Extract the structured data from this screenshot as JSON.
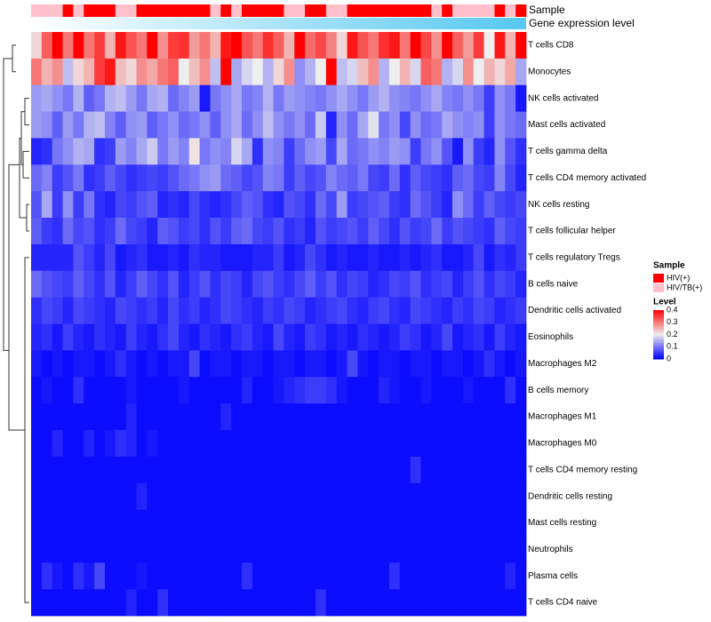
{
  "chart_data": {
    "type": "heatmap",
    "title": "",
    "annotation_tracks": [
      {
        "name": "Sample",
        "label": "Sample"
      },
      {
        "name": "Gene expression level",
        "label": "Gene expression level"
      }
    ],
    "sample_groups": [
      "HIV/TB(+)",
      "HIV/TB(+)",
      "HIV/TB(+)",
      "HIV(+)",
      "HIV/TB(+)",
      "HIV(+)",
      "HIV(+)",
      "HIV(+)",
      "HIV/TB(+)",
      "HIV/TB(+)",
      "HIV(+)",
      "HIV(+)",
      "HIV(+)",
      "HIV(+)",
      "HIV(+)",
      "HIV(+)",
      "HIV(+)",
      "HIV/TB(+)",
      "HIV(+)",
      "HIV/TB(+)",
      "HIV(+)",
      "HIV(+)",
      "HIV(+)",
      "HIV(+)",
      "HIV/TB(+)",
      "HIV/TB(+)",
      "HIV(+)",
      "HIV(+)",
      "HIV/TB(+)",
      "HIV/TB(+)",
      "HIV(+)",
      "HIV(+)",
      "HIV(+)",
      "HIV(+)",
      "HIV(+)",
      "HIV(+)",
      "HIV(+)",
      "HIV(+)",
      "HIV/TB(+)",
      "HIV(+)",
      "HIV/TB(+)",
      "HIV/TB(+)",
      "HIV/TB(+)",
      "HIV/TB(+)",
      "HIV(+)",
      "HIV/TB(+)",
      "HIV(+)"
    ],
    "rows": [
      "T cells CD8",
      "Monocytes",
      "NK cells activated",
      "Mast cells activated",
      "T cells gamma delta",
      "T cells CD4 memory activated",
      "NK cells resting",
      "T cells follicular helper",
      "T cells regulatory  Tregs",
      "B cells naive",
      "Dendritic cells activated",
      "Eosinophils",
      "Macrophages M2",
      "B cells memory",
      "Macrophages M1",
      "Macrophages M0",
      "T cells CD4 memory resting",
      "Dendritic cells resting",
      "Mast cells resting",
      "Neutrophils",
      "Plasma cells",
      "T cells CD4 naive"
    ],
    "values": [
      [
        0.22,
        0.32,
        0.4,
        0.3,
        0.4,
        0.3,
        0.35,
        0.25,
        0.38,
        0.33,
        0.3,
        0.4,
        0.28,
        0.35,
        0.36,
        0.27,
        0.3,
        0.25,
        0.38,
        0.4,
        0.33,
        0.3,
        0.36,
        0.32,
        0.25,
        0.4,
        0.31,
        0.34,
        0.29,
        0.22,
        0.38,
        0.33,
        0.3,
        0.36,
        0.38,
        0.3,
        0.4,
        0.34,
        0.28,
        0.4,
        0.32,
        0.27,
        0.35,
        0.2,
        0.38,
        0.25,
        0.4
      ],
      [
        0.3,
        0.25,
        0.28,
        0.16,
        0.22,
        0.25,
        0.35,
        0.38,
        0.24,
        0.22,
        0.28,
        0.26,
        0.3,
        0.32,
        0.2,
        0.24,
        0.28,
        0.16,
        0.4,
        0.14,
        0.18,
        0.2,
        0.15,
        0.22,
        0.28,
        0.12,
        0.15,
        0.2,
        0.4,
        0.16,
        0.18,
        0.24,
        0.28,
        0.15,
        0.2,
        0.25,
        0.18,
        0.32,
        0.3,
        0.15,
        0.18,
        0.28,
        0.2,
        0.25,
        0.22,
        0.26,
        0.14
      ],
      [
        0.13,
        0.14,
        0.12,
        0.1,
        0.15,
        0.08,
        0.1,
        0.15,
        0.16,
        0.13,
        0.1,
        0.14,
        0.15,
        0.09,
        0.11,
        0.13,
        0.02,
        0.1,
        0.12,
        0.14,
        0.1,
        0.11,
        0.15,
        0.1,
        0.13,
        0.12,
        0.11,
        0.1,
        0.12,
        0.14,
        0.12,
        0.1,
        0.13,
        0.15,
        0.12,
        0.11,
        0.1,
        0.12,
        0.14,
        0.11,
        0.1,
        0.12,
        0.1,
        0.05,
        0.12,
        0.1,
        0.02
      ],
      [
        0.13,
        0.12,
        0.08,
        0.13,
        0.1,
        0.15,
        0.16,
        0.11,
        0.08,
        0.12,
        0.13,
        0.08,
        0.1,
        0.12,
        0.09,
        0.1,
        0.12,
        0.08,
        0.12,
        0.14,
        0.09,
        0.12,
        0.16,
        0.12,
        0.1,
        0.12,
        0.09,
        0.17,
        0.03,
        0.12,
        0.09,
        0.14,
        0.19,
        0.1,
        0.12,
        0.06,
        0.12,
        0.09,
        0.1,
        0.14,
        0.12,
        0.11,
        0.12,
        0.05,
        0.12,
        0.1,
        0.09
      ],
      [
        0.03,
        0.04,
        0.1,
        0.12,
        0.15,
        0.14,
        0.04,
        0.05,
        0.13,
        0.11,
        0.14,
        0.17,
        0.1,
        0.13,
        0.11,
        0.21,
        0.1,
        0.12,
        0.11,
        0.18,
        0.14,
        0.04,
        0.12,
        0.11,
        0.05,
        0.09,
        0.12,
        0.13,
        0.06,
        0.14,
        0.09,
        0.1,
        0.12,
        0.11,
        0.13,
        0.12,
        0.05,
        0.1,
        0.12,
        0.07,
        0.02,
        0.12,
        0.05,
        0.03,
        0.12,
        0.07,
        0.04
      ],
      [
        0.09,
        0.11,
        0.05,
        0.07,
        0.1,
        0.04,
        0.05,
        0.08,
        0.06,
        0.04,
        0.05,
        0.06,
        0.05,
        0.07,
        0.09,
        0.1,
        0.12,
        0.13,
        0.09,
        0.08,
        0.06,
        0.07,
        0.11,
        0.1,
        0.05,
        0.08,
        0.06,
        0.07,
        0.11,
        0.09,
        0.08,
        0.1,
        0.06,
        0.05,
        0.09,
        0.04,
        0.08,
        0.06,
        0.05,
        0.04,
        0.08,
        0.09,
        0.06,
        0.05,
        0.11,
        0.06,
        0.03
      ],
      [
        0.07,
        0.14,
        0.05,
        0.12,
        0.05,
        0.1,
        0.04,
        0.03,
        0.06,
        0.05,
        0.07,
        0.08,
        0.03,
        0.04,
        0.03,
        0.06,
        0.04,
        0.03,
        0.04,
        0.06,
        0.08,
        0.07,
        0.04,
        0.03,
        0.07,
        0.06,
        0.04,
        0.09,
        0.06,
        0.13,
        0.05,
        0.06,
        0.07,
        0.08,
        0.05,
        0.04,
        0.09,
        0.07,
        0.05,
        0.03,
        0.12,
        0.09,
        0.05,
        0.08,
        0.06,
        0.05,
        0.06
      ],
      [
        0.08,
        0.05,
        0.04,
        0.09,
        0.06,
        0.07,
        0.04,
        0.05,
        0.09,
        0.06,
        0.05,
        0.03,
        0.08,
        0.07,
        0.05,
        0.06,
        0.04,
        0.07,
        0.05,
        0.08,
        0.09,
        0.06,
        0.05,
        0.07,
        0.04,
        0.05,
        0.03,
        0.07,
        0.05,
        0.06,
        0.07,
        0.05,
        0.08,
        0.06,
        0.04,
        0.07,
        0.05,
        0.06,
        0.09,
        0.05,
        0.07,
        0.06,
        0.05,
        0.04,
        0.08,
        0.06,
        0.05
      ],
      [
        0.03,
        0.03,
        0.03,
        0.03,
        0.07,
        0.05,
        0.03,
        0.06,
        0.02,
        0.03,
        0.04,
        0.02,
        0.02,
        0.03,
        0.02,
        0.04,
        0.03,
        0.03,
        0.02,
        0.02,
        0.02,
        0.03,
        0.03,
        0.05,
        0.02,
        0.03,
        0.06,
        0.04,
        0.02,
        0.03,
        0.02,
        0.02,
        0.03,
        0.02,
        0.02,
        0.03,
        0.02,
        0.03,
        0.04,
        0.02,
        0.02,
        0.03,
        0.06,
        0.02,
        0.04,
        0.03,
        0.05
      ],
      [
        0.09,
        0.07,
        0.06,
        0.05,
        0.08,
        0.06,
        0.04,
        0.07,
        0.03,
        0.05,
        0.08,
        0.06,
        0.04,
        0.07,
        0.03,
        0.05,
        0.07,
        0.04,
        0.06,
        0.05,
        0.03,
        0.06,
        0.07,
        0.05,
        0.04,
        0.06,
        0.08,
        0.05,
        0.07,
        0.04,
        0.06,
        0.05,
        0.03,
        0.04,
        0.06,
        0.05,
        0.07,
        0.04,
        0.05,
        0.06,
        0.03,
        0.05,
        0.07,
        0.04,
        0.06,
        0.05,
        0.03
      ],
      [
        0.04,
        0.06,
        0.05,
        0.03,
        0.06,
        0.05,
        0.04,
        0.03,
        0.06,
        0.05,
        0.04,
        0.05,
        0.03,
        0.06,
        0.04,
        0.05,
        0.03,
        0.04,
        0.06,
        0.05,
        0.04,
        0.03,
        0.05,
        0.04,
        0.06,
        0.05,
        0.03,
        0.04,
        0.05,
        0.06,
        0.04,
        0.03,
        0.05,
        0.06,
        0.04,
        0.03,
        0.06,
        0.05,
        0.04,
        0.03,
        0.05,
        0.04,
        0.06,
        0.05,
        0.03,
        0.04,
        0.05
      ],
      [
        0.03,
        0.04,
        0.02,
        0.05,
        0.03,
        0.02,
        0.04,
        0.03,
        0.02,
        0.05,
        0.03,
        0.02,
        0.04,
        0.06,
        0.03,
        0.02,
        0.04,
        0.03,
        0.02,
        0.04,
        0.05,
        0.03,
        0.02,
        0.06,
        0.03,
        0.02,
        0.05,
        0.04,
        0.02,
        0.03,
        0.02,
        0.04,
        0.03,
        0.02,
        0.03,
        0.05,
        0.04,
        0.02,
        0.03,
        0.06,
        0.02,
        0.03,
        0.04,
        0.02,
        0.05,
        0.03,
        0.02
      ],
      [
        0.02,
        0.01,
        0.02,
        0.01,
        0.02,
        0.02,
        0.01,
        0.02,
        0.04,
        0.02,
        0.01,
        0.02,
        0.01,
        0.02,
        0.02,
        0.06,
        0.01,
        0.02,
        0.02,
        0.01,
        0.02,
        0.02,
        0.01,
        0.02,
        0.02,
        0.01,
        0.02,
        0.02,
        0.01,
        0.02,
        0.06,
        0.02,
        0.01,
        0.02,
        0.02,
        0.01,
        0.02,
        0.02,
        0.01,
        0.02,
        0.02,
        0.01,
        0.02,
        0.04,
        0.02,
        0.01,
        0.02
      ],
      [
        0.01,
        0.02,
        0.01,
        0.01,
        0.04,
        0.01,
        0.01,
        0.01,
        0.01,
        0.02,
        0.01,
        0.01,
        0.01,
        0.01,
        0.02,
        0.01,
        0.01,
        0.01,
        0.01,
        0.01,
        0.03,
        0.01,
        0.01,
        0.02,
        0.03,
        0.04,
        0.05,
        0.05,
        0.04,
        0.02,
        0.01,
        0.01,
        0.01,
        0.03,
        0.02,
        0.01,
        0.01,
        0.02,
        0.01,
        0.01,
        0.01,
        0.02,
        0.01,
        0.01,
        0.01,
        0.04,
        0.01
      ],
      [
        0.01,
        0.01,
        0.01,
        0.01,
        0.01,
        0.01,
        0.01,
        0.01,
        0.01,
        0.03,
        0.01,
        0.01,
        0.01,
        0.01,
        0.01,
        0.01,
        0.01,
        0.01,
        0.03,
        0.01,
        0.01,
        0.01,
        0.01,
        0.01,
        0.01,
        0.01,
        0.01,
        0.01,
        0.01,
        0.01,
        0.01,
        0.01,
        0.01,
        0.01,
        0.01,
        0.01,
        0.01,
        0.01,
        0.01,
        0.01,
        0.01,
        0.01,
        0.01,
        0.01,
        0.01,
        0.01,
        0.01
      ],
      [
        0.01,
        0.01,
        0.03,
        0.01,
        0.01,
        0.03,
        0.01,
        0.02,
        0.04,
        0.03,
        0.01,
        0.02,
        0.01,
        0.01,
        0.01,
        0.01,
        0.01,
        0.01,
        0.01,
        0.01,
        0.01,
        0.01,
        0.01,
        0.01,
        0.01,
        0.01,
        0.01,
        0.01,
        0.01,
        0.01,
        0.01,
        0.01,
        0.01,
        0.01,
        0.01,
        0.01,
        0.01,
        0.01,
        0.01,
        0.01,
        0.01,
        0.01,
        0.01,
        0.01,
        0.01,
        0.01,
        0.01
      ],
      [
        0.01,
        0.01,
        0.01,
        0.01,
        0.01,
        0.01,
        0.01,
        0.01,
        0.01,
        0.01,
        0.01,
        0.01,
        0.01,
        0.01,
        0.01,
        0.01,
        0.01,
        0.01,
        0.01,
        0.01,
        0.01,
        0.01,
        0.01,
        0.01,
        0.01,
        0.01,
        0.01,
        0.01,
        0.01,
        0.01,
        0.01,
        0.01,
        0.01,
        0.01,
        0.01,
        0.01,
        0.04,
        0.01,
        0.01,
        0.01,
        0.01,
        0.01,
        0.01,
        0.01,
        0.01,
        0.01,
        0.01
      ],
      [
        0.01,
        0.01,
        0.01,
        0.01,
        0.01,
        0.01,
        0.01,
        0.01,
        0.01,
        0.01,
        0.03,
        0.01,
        0.01,
        0.01,
        0.01,
        0.01,
        0.01,
        0.01,
        0.01,
        0.01,
        0.01,
        0.01,
        0.01,
        0.01,
        0.01,
        0.01,
        0.01,
        0.01,
        0.01,
        0.01,
        0.01,
        0.01,
        0.01,
        0.01,
        0.01,
        0.01,
        0.01,
        0.01,
        0.01,
        0.01,
        0.01,
        0.01,
        0.01,
        0.01,
        0.01,
        0.01,
        0.01
      ],
      [
        0.01,
        0.01,
        0.01,
        0.01,
        0.01,
        0.01,
        0.01,
        0.01,
        0.01,
        0.01,
        0.01,
        0.01,
        0.01,
        0.01,
        0.01,
        0.01,
        0.01,
        0.01,
        0.01,
        0.01,
        0.01,
        0.01,
        0.01,
        0.01,
        0.01,
        0.01,
        0.01,
        0.01,
        0.01,
        0.01,
        0.01,
        0.01,
        0.01,
        0.01,
        0.01,
        0.01,
        0.01,
        0.01,
        0.01,
        0.01,
        0.01,
        0.01,
        0.01,
        0.01,
        0.01,
        0.01,
        0.01
      ],
      [
        0.01,
        0.01,
        0.01,
        0.01,
        0.01,
        0.01,
        0.01,
        0.01,
        0.01,
        0.01,
        0.01,
        0.01,
        0.01,
        0.01,
        0.01,
        0.01,
        0.01,
        0.01,
        0.01,
        0.01,
        0.01,
        0.01,
        0.01,
        0.01,
        0.01,
        0.01,
        0.01,
        0.01,
        0.01,
        0.01,
        0.01,
        0.01,
        0.01,
        0.01,
        0.01,
        0.01,
        0.01,
        0.01,
        0.01,
        0.01,
        0.01,
        0.01,
        0.01,
        0.01,
        0.01,
        0.01,
        0.01
      ],
      [
        0.01,
        0.04,
        0.02,
        0.01,
        0.04,
        0.02,
        0.06,
        0.01,
        0.01,
        0.01,
        0.02,
        0.01,
        0.01,
        0.01,
        0.01,
        0.01,
        0.01,
        0.01,
        0.01,
        0.01,
        0.04,
        0.01,
        0.01,
        0.01,
        0.01,
        0.01,
        0.01,
        0.01,
        0.01,
        0.01,
        0.01,
        0.01,
        0.01,
        0.01,
        0.04,
        0.01,
        0.01,
        0.01,
        0.01,
        0.01,
        0.01,
        0.01,
        0.01,
        0.01,
        0.01,
        0.03,
        0.01
      ],
      [
        0.01,
        0.01,
        0.01,
        0.01,
        0.01,
        0.01,
        0.01,
        0.01,
        0.01,
        0.03,
        0.01,
        0.01,
        0.04,
        0.01,
        0.01,
        0.01,
        0.01,
        0.01,
        0.01,
        0.01,
        0.01,
        0.01,
        0.01,
        0.01,
        0.01,
        0.01,
        0.01,
        0.04,
        0.01,
        0.01,
        0.01,
        0.01,
        0.01,
        0.01,
        0.01,
        0.01,
        0.01,
        0.01,
        0.01,
        0.01,
        0.01,
        0.01,
        0.01,
        0.01,
        0.01,
        0.01,
        0.01
      ]
    ],
    "legend_sample": {
      "title": "Sample",
      "entries": [
        {
          "label": "HIV(+)",
          "color": "#ff0000"
        },
        {
          "label": "HIV/TB(+)",
          "color": "#ffc0cb"
        }
      ]
    },
    "legend_level": {
      "title": "Level",
      "ticks": [
        {
          "value": 0.4,
          "label": "0.4"
        },
        {
          "value": 0.3,
          "label": "0.3"
        },
        {
          "value": 0.2,
          "label": "0.2"
        },
        {
          "value": 0.1,
          "label": "0.1"
        },
        {
          "value": 0,
          "label": "0"
        }
      ]
    },
    "color_scale": {
      "min": 0,
      "max": 0.4,
      "low": "#0000ff",
      "mid": "#eeeeee",
      "high": "#ff0000"
    },
    "expression_color": "#56c8f0"
  }
}
